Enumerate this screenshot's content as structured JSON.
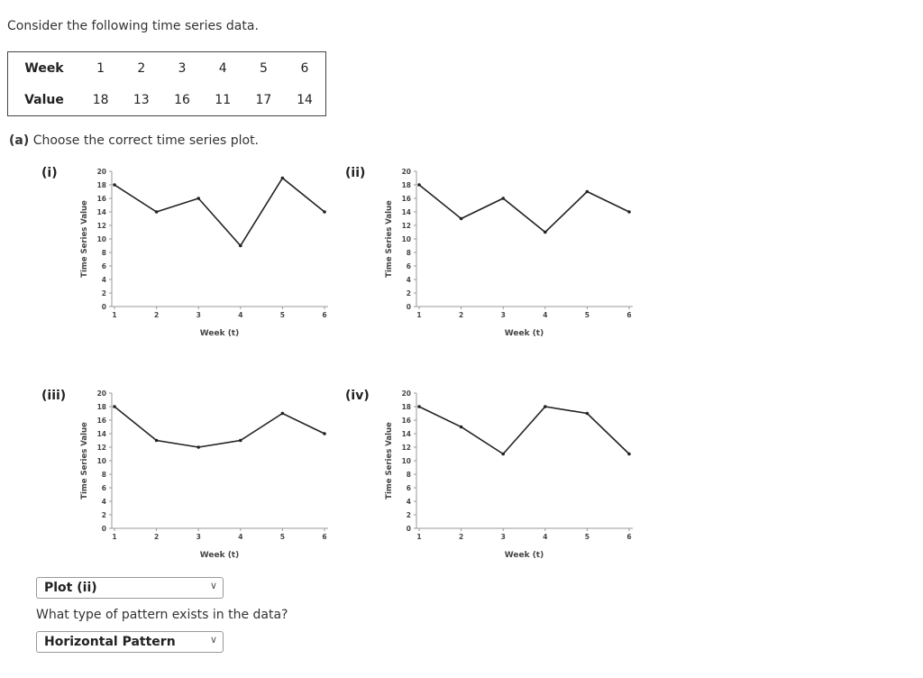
{
  "intro": "Consider the following time series data.",
  "table": {
    "week_label": "Week",
    "value_label": "Value",
    "weeks": [
      "1",
      "2",
      "3",
      "4",
      "5",
      "6"
    ],
    "values": [
      "18",
      "13",
      "16",
      "11",
      "17",
      "14"
    ]
  },
  "part_a": {
    "prefix": "(a)",
    "text": "Choose the correct time series plot."
  },
  "question2": "What type of pattern exists in the data?",
  "selects": {
    "plot": "Plot (ii)",
    "pattern": "Horizontal Pattern"
  },
  "chart_data": [
    {
      "type": "line",
      "label": "(i)",
      "x": [
        1,
        2,
        3,
        4,
        5,
        6
      ],
      "values": [
        18,
        14,
        16,
        9,
        19,
        14
      ],
      "xlabel": "Week (t)",
      "ylabel": "Time Series Value",
      "ylim": [
        0,
        20
      ],
      "xlim": [
        1,
        6
      ],
      "yticks": [
        "0",
        "2",
        "4",
        "6",
        "8",
        "10",
        "12",
        "14",
        "16",
        "18",
        "20"
      ],
      "xticks": [
        "1",
        "2",
        "3",
        "4",
        "5",
        "6"
      ],
      "grid": false
    },
    {
      "type": "line",
      "label": "(ii)",
      "x": [
        1,
        2,
        3,
        4,
        5,
        6
      ],
      "values": [
        18,
        13,
        16,
        11,
        17,
        14
      ],
      "xlabel": "Week (t)",
      "ylabel": "Time Series Value",
      "ylim": [
        0,
        20
      ],
      "xlim": [
        1,
        6
      ],
      "yticks": [
        "0",
        "2",
        "4",
        "6",
        "8",
        "10",
        "12",
        "14",
        "16",
        "18",
        "20"
      ],
      "xticks": [
        "1",
        "2",
        "3",
        "4",
        "5",
        "6"
      ],
      "grid": false
    },
    {
      "type": "line",
      "label": "(iii)",
      "x": [
        1,
        2,
        3,
        4,
        5,
        6
      ],
      "values": [
        18,
        13,
        12,
        13,
        17,
        14
      ],
      "xlabel": "Week (t)",
      "ylabel": "Time Series Value",
      "ylim": [
        0,
        20
      ],
      "xlim": [
        1,
        6
      ],
      "yticks": [
        "0",
        "2",
        "4",
        "6",
        "8",
        "10",
        "12",
        "14",
        "16",
        "18",
        "20"
      ],
      "xticks": [
        "1",
        "2",
        "3",
        "4",
        "5",
        "6"
      ],
      "grid": false
    },
    {
      "type": "line",
      "label": "(iv)",
      "x": [
        1,
        2,
        3,
        4,
        5,
        6
      ],
      "values": [
        18,
        15,
        11,
        18,
        17,
        11
      ],
      "xlabel": "Week (t)",
      "ylabel": "Time Series Value",
      "ylim": [
        0,
        20
      ],
      "xlim": [
        1,
        6
      ],
      "yticks": [
        "0",
        "2",
        "4",
        "6",
        "8",
        "10",
        "12",
        "14",
        "16",
        "18",
        "20"
      ],
      "xticks": [
        "1",
        "2",
        "3",
        "4",
        "5",
        "6"
      ],
      "grid": false
    }
  ]
}
